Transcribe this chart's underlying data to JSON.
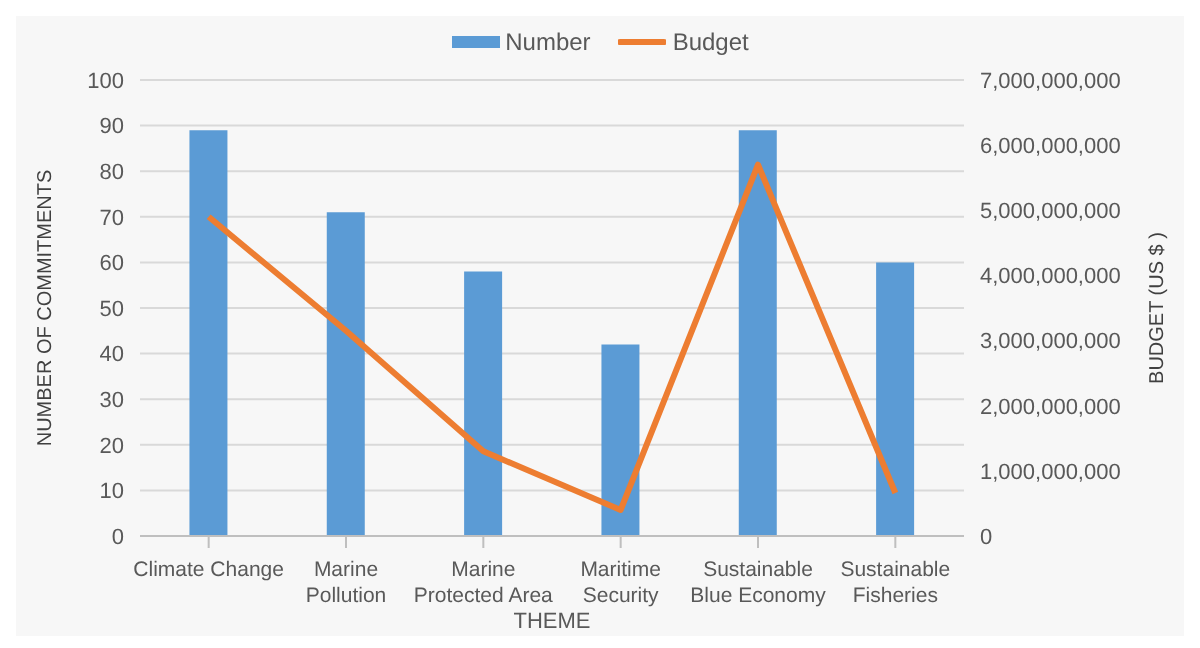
{
  "chart_data": {
    "type": "bar",
    "categories": [
      "Climate Change",
      "Marine Pollution",
      "Marine Protected Area",
      "Maritime Security",
      "Sustainable Blue Economy",
      "Sustainable Fisheries"
    ],
    "series": [
      {
        "name": "Number",
        "color": "#5b9bd5",
        "values": [
          89,
          71,
          58,
          42,
          89,
          60
        ]
      },
      {
        "name": "Budget",
        "type": "line",
        "axis": "y2",
        "color": "#ed7d31",
        "values": [
          4900000000,
          3150000000,
          1300000000,
          400000000,
          5700000000,
          660000000
        ]
      }
    ],
    "xlabel": "THEME",
    "ylabel": "NUMBER OF COMMITMENTS",
    "y2label": "BUDGET (US $ )",
    "ylim": [
      0,
      100
    ],
    "yticks": [
      0,
      10,
      20,
      30,
      40,
      50,
      60,
      70,
      80,
      90,
      100
    ],
    "y2lim": [
      0,
      7000000000
    ],
    "y2ticks": [
      0,
      {
        "value": 1000000000,
        "label": "1,000,000,000"
      },
      {
        "value": 2000000000,
        "label": "2,000,000,000"
      },
      {
        "value": 3000000000,
        "label": "3,000,000,000"
      },
      {
        "value": 4000000000,
        "label": "4,000,000,000"
      },
      {
        "value": 5000000000,
        "label": "5,000,000,000"
      },
      {
        "value": 6000000000,
        "label": "6,000,000,000"
      },
      {
        "value": 7000000000,
        "label": "7,000,000,000"
      }
    ],
    "grid": "y",
    "legend": "top",
    "marker": "none"
  }
}
